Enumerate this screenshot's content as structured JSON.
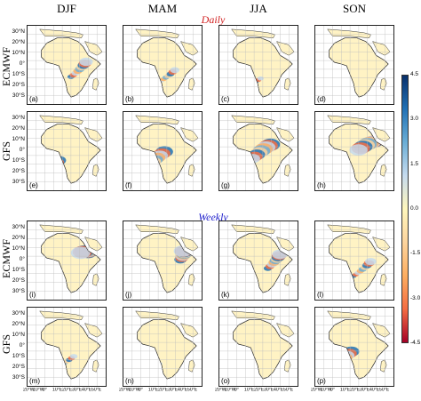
{
  "columns": [
    "DJF",
    "MAM",
    "JJA",
    "SON"
  ],
  "rows": [
    "ECMWF",
    "GFS",
    "ECMWF",
    "GFS"
  ],
  "sections": [
    "Daily",
    "Weekly"
  ],
  "section_colors": [
    "#d22222",
    "#2222cc"
  ],
  "panel_labels": [
    "(a)",
    "(b)",
    "(c)",
    "(d)",
    "(e)",
    "(f)",
    "(g)",
    "(h)",
    "(i)",
    "(j)",
    "(k)",
    "(l)",
    "(m)",
    "(n)",
    "(o)",
    "(p)"
  ],
  "lat_ticks": [
    "30°N",
    "20°N",
    "10°N",
    "0°",
    "10°S",
    "20°S",
    "30°S"
  ],
  "lon_ticks": [
    "20°W",
    "10°W",
    "0°",
    "10°E",
    "20°E",
    "30°E",
    "40°E",
    "50°E"
  ],
  "colorbar": {
    "ticks": [
      "4.5",
      "3.0",
      "1.5",
      "0.0",
      "-1.5",
      "-3.0",
      "-4.5"
    ],
    "range": [
      -4.5,
      4.5
    ],
    "colors": [
      "#08306b",
      "#2171b5",
      "#6baed6",
      "#c6dbef",
      "#fff7bc",
      "#fdd49e",
      "#fdae61",
      "#f46d43",
      "#a50026"
    ]
  }
}
